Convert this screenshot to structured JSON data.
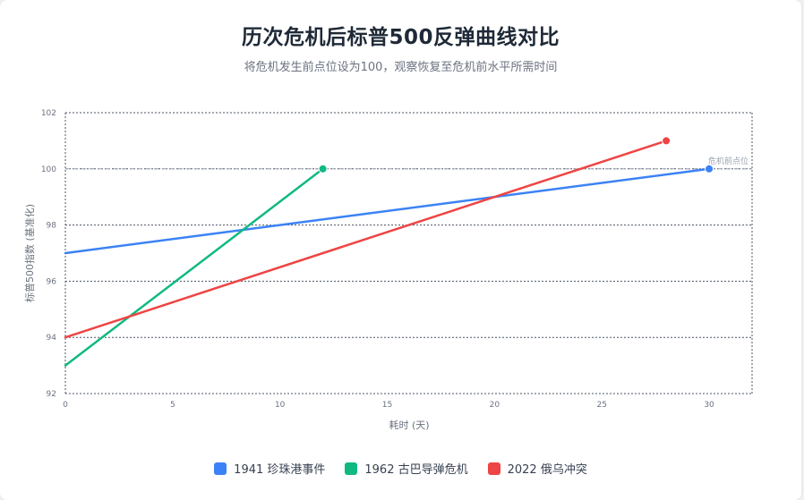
{
  "colors": {
    "series_1941": "#3b82f6",
    "series_1962": "#10b981",
    "series_2022": "#ef4444",
    "grid": "#4b5563",
    "reference_line": "#9ca3af",
    "axis_text": "#6b7280"
  },
  "chart_data": {
    "type": "line",
    "title": "历次危机后标普500反弹曲线对比",
    "subtitle": "将危机发生前点位设为100，观察恢复至危机前水平所需时间",
    "xlabel": "耗时 (天)",
    "ylabel": "标普500指数 (基准化)",
    "xlim": [
      0,
      32
    ],
    "ylim": [
      92,
      102
    ],
    "x_ticks": [
      "0",
      "5",
      "10",
      "15",
      "20",
      "25",
      "30"
    ],
    "y_ticks": [
      "92",
      "94",
      "96",
      "98",
      "100",
      "102"
    ],
    "grid": true,
    "legend_position": "bottom",
    "reference_line": {
      "y": 100,
      "label": "危机前点位"
    },
    "series": [
      {
        "name": "1941 珍珠港事件",
        "color": "#3b82f6",
        "points": [
          [
            0,
            97
          ],
          [
            30,
            100
          ]
        ]
      },
      {
        "name": "1962 古巴导弹危机",
        "color": "#10b981",
        "points": [
          [
            0,
            93
          ],
          [
            12,
            100
          ]
        ]
      },
      {
        "name": "2022 俄乌冲突",
        "color": "#ef4444",
        "points": [
          [
            0,
            94
          ],
          [
            28,
            101
          ]
        ]
      }
    ]
  }
}
